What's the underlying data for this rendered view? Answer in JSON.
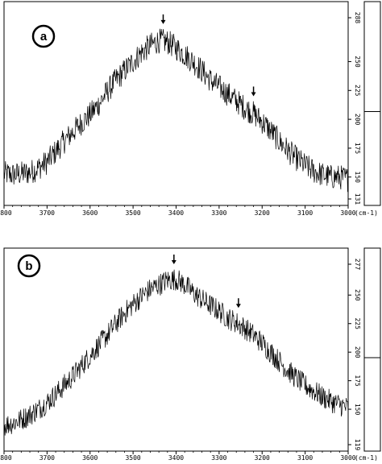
{
  "chart_data": [
    {
      "type": "line",
      "panel_label": "a",
      "xlabel": "",
      "x_unit_label": "(cm-1)",
      "x_range": [
        3800,
        3000
      ],
      "x_ticks": [
        "3800",
        "3700",
        "3600",
        "3500",
        "3400",
        "3300",
        "3200",
        "3100",
        "3000"
      ],
      "x_tick_values": [
        3800,
        3700,
        3600,
        3500,
        3400,
        3300,
        3200,
        3100,
        3000
      ],
      "y_range": [
        131,
        288
      ],
      "y_ticks": [
        "131",
        "150",
        "175",
        "200",
        "225",
        "250",
        "288"
      ],
      "y_tick_values": [
        131,
        150,
        175,
        200,
        225,
        250,
        288
      ],
      "grid": false,
      "noise_amplitude": 11,
      "series": [
        {
          "x": [
            3800,
            3780,
            3760,
            3740,
            3720,
            3700,
            3680,
            3660,
            3640,
            3620,
            3600,
            3580,
            3560,
            3540,
            3520,
            3500,
            3480,
            3460,
            3440,
            3420,
            3400,
            3380,
            3360,
            3340,
            3320,
            3300,
            3280,
            3260,
            3240,
            3220,
            3200,
            3180,
            3160,
            3140,
            3120,
            3100,
            3080,
            3060,
            3040,
            3020,
            3000
          ],
          "y": [
            153,
            152,
            153,
            154,
            158,
            163,
            172,
            181,
            189,
            197,
            204,
            213,
            224,
            234,
            242,
            250,
            258,
            264,
            268,
            267,
            262,
            256,
            250,
            242,
            234,
            228,
            222,
            216,
            210,
            205,
            198,
            190,
            181,
            173,
            166,
            160,
            155,
            152,
            150,
            150,
            148
          ]
        }
      ],
      "arrows_at_x": [
        3430,
        3220
      ]
    },
    {
      "type": "line",
      "panel_label": "b",
      "xlabel": "",
      "x_unit_label": "(cm-1)",
      "x_range": [
        3800,
        3000
      ],
      "x_ticks": [
        "3800",
        "3700",
        "3600",
        "3500",
        "3400",
        "3300",
        "3200",
        "3100",
        "3000"
      ],
      "x_tick_values": [
        3800,
        3700,
        3600,
        3500,
        3400,
        3300,
        3200,
        3100,
        3000
      ],
      "y_range": [
        119,
        277
      ],
      "y_ticks": [
        "119",
        "150",
        "175",
        "200",
        "225",
        "250",
        "277"
      ],
      "y_tick_values": [
        119,
        150,
        175,
        200,
        225,
        250,
        277
      ],
      "grid": false,
      "noise_amplitude": 10,
      "series": [
        {
          "x": [
            3800,
            3780,
            3760,
            3740,
            3720,
            3700,
            3680,
            3660,
            3640,
            3620,
            3600,
            3580,
            3560,
            3540,
            3520,
            3500,
            3480,
            3460,
            3440,
            3420,
            3400,
            3380,
            3360,
            3340,
            3320,
            3300,
            3280,
            3260,
            3240,
            3220,
            3200,
            3180,
            3160,
            3140,
            3120,
            3100,
            3080,
            3060,
            3040,
            3020,
            3000
          ],
          "y": [
            136,
            138,
            141,
            145,
            150,
            156,
            163,
            171,
            179,
            188,
            197,
            206,
            215,
            225,
            234,
            242,
            249,
            255,
            259,
            263,
            264,
            259,
            252,
            246,
            241,
            236,
            230,
            226,
            221,
            215,
            208,
            200,
            192,
            184,
            177,
            171,
            166,
            161,
            157,
            154,
            151
          ]
        }
      ],
      "arrows_at_x": [
        3405,
        3255
      ]
    }
  ]
}
